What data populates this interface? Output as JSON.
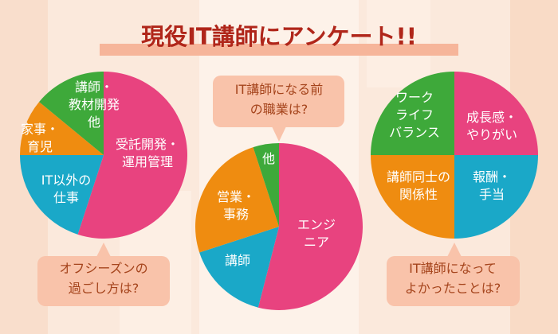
{
  "title": "現役IT講師にアンケート!!",
  "colors": {
    "pink": "#e8437f",
    "blue": "#1aa8c8",
    "orange": "#ef8c10",
    "green": "#3ea93a",
    "title": "#b0261a",
    "callout": "#f9c3aa",
    "callout_text": "#a5441c"
  },
  "chart_data": [
    {
      "type": "pie",
      "title": "オフシーズンの過ごし方は?",
      "title_lines": [
        "オフシーズンの",
        "過ごし方は?"
      ],
      "slices": [
        {
          "label_lines": [
            "受託開発・",
            "運用管理"
          ],
          "value": 55,
          "color": "#e8437f"
        },
        {
          "label_lines": [
            "IT以外の",
            "仕事"
          ],
          "value": 20,
          "color": "#1aa8c8"
        },
        {
          "label_lines": [
            "家事・",
            "育児"
          ],
          "value": 11,
          "color": "#ef8c10"
        },
        {
          "label_lines": [
            "講師・",
            "教材開発",
            "他"
          ],
          "value": 14,
          "color": "#3ea93a"
        }
      ]
    },
    {
      "type": "pie",
      "title": "IT講師になる前の職業は?",
      "title_lines": [
        "IT講師になる前",
        "の職業は?"
      ],
      "slices": [
        {
          "label_lines": [
            "エンジ",
            "ニア"
          ],
          "value": 54,
          "color": "#e8437f"
        },
        {
          "label_lines": [
            "講師"
          ],
          "value": 16,
          "color": "#1aa8c8"
        },
        {
          "label_lines": [
            "営業・",
            "事務"
          ],
          "value": 25,
          "color": "#ef8c10"
        },
        {
          "label_lines": [
            "他"
          ],
          "value": 5,
          "color": "#3ea93a"
        }
      ]
    },
    {
      "type": "pie",
      "title": "IT講師になってよかったことは?",
      "title_lines": [
        "IT講師になって",
        "よかったことは?"
      ],
      "slices": [
        {
          "label_lines": [
            "成長感・",
            "やりがい"
          ],
          "value": 25,
          "color": "#e8437f"
        },
        {
          "label_lines": [
            "報酬・",
            "手当"
          ],
          "value": 25,
          "color": "#1aa8c8"
        },
        {
          "label_lines": [
            "講師同士の",
            "関係性"
          ],
          "value": 25,
          "color": "#ef8c10"
        },
        {
          "label_lines": [
            "ワーク",
            "ライフ",
            "バランス"
          ],
          "value": 25,
          "color": "#3ea93a"
        }
      ]
    }
  ]
}
